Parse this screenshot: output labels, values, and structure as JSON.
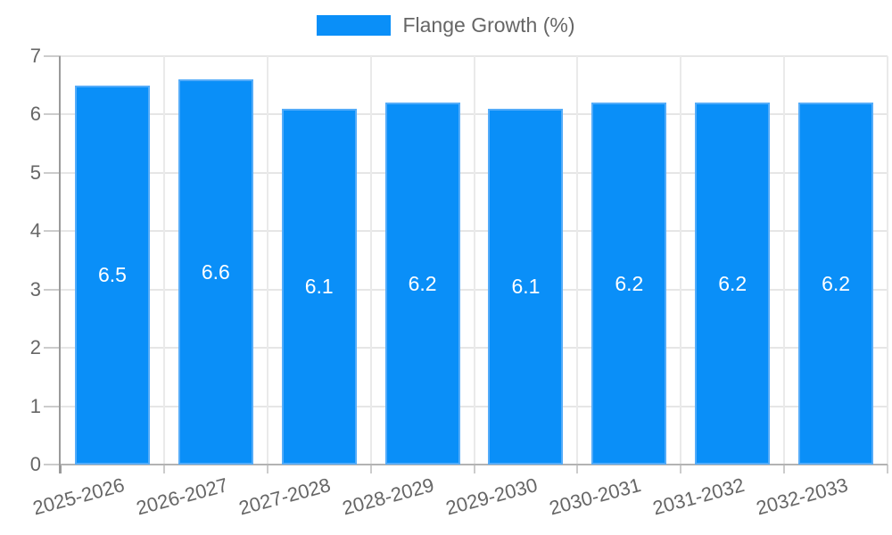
{
  "legend": {
    "label": "Flange Growth (%)",
    "position": "top"
  },
  "chart_data": {
    "type": "bar",
    "title": "",
    "xlabel": "",
    "ylabel": "",
    "categories": [
      "2025-2026",
      "2026-2027",
      "2027-2028",
      "2028-2029",
      "2029-2030",
      "2030-2031",
      "2031-2032",
      "2032-2033"
    ],
    "series": [
      {
        "name": "Flange Growth (%)",
        "values": [
          6.5,
          6.6,
          6.1,
          6.2,
          6.1,
          6.2,
          6.2,
          6.2
        ]
      }
    ],
    "value_labels": [
      "6.5",
      "6.6",
      "6.1",
      "6.2",
      "6.1",
      "6.2",
      "6.2",
      "6.2"
    ],
    "ylim": [
      0,
      7
    ],
    "yticks": [
      0,
      1,
      2,
      3,
      4,
      5,
      6,
      7
    ],
    "grid": true,
    "legend_position": "top",
    "colors": {
      "bar": "#0A8FF8",
      "bar_border": "#54ACF9",
      "value_label": "#FFFFFF",
      "axis_text": "#666666",
      "gridline": "#E6E6E6",
      "vertical_gridline": "#EAEAEA",
      "spine": "#9A9A9A",
      "axis_line": "#B3B3B3",
      "tick": "#CCCCCC"
    }
  }
}
